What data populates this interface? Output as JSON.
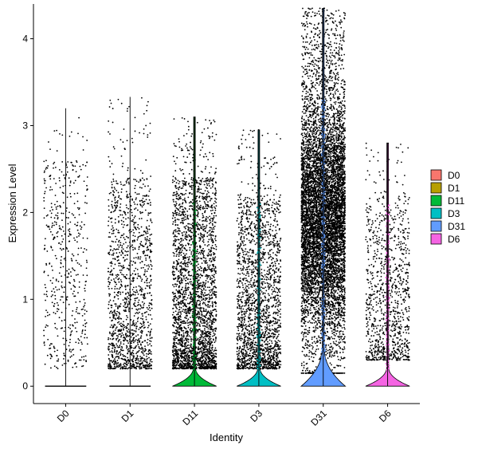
{
  "chart_data": {
    "type": "violin",
    "xlabel": "Identity",
    "ylabel": "Expression Level",
    "ylim": [
      -0.2,
      4.4
    ],
    "yticks": [
      0,
      1,
      2,
      3,
      4
    ],
    "grid": false,
    "legend_position": "right",
    "categories": [
      "D0",
      "D1",
      "D11",
      "D3",
      "D31",
      "D6"
    ],
    "legend": [
      {
        "label": "D0",
        "color": "#F8766D"
      },
      {
        "label": "D1",
        "color": "#B79F00"
      },
      {
        "label": "D11",
        "color": "#00BA38"
      },
      {
        "label": "D3",
        "color": "#00BFC4"
      },
      {
        "label": "D31",
        "color": "#619CFF"
      },
      {
        "label": "D6",
        "color": "#F564E3"
      }
    ],
    "series": [
      {
        "category": "D0",
        "max": 3.2,
        "points_above_zero": 500,
        "point_band": [
          0.2,
          2.6
        ]
      },
      {
        "category": "D1",
        "max": 3.33,
        "points_above_zero": 1400,
        "point_band": [
          0.2,
          2.4
        ]
      },
      {
        "category": "D11",
        "max": 3.1,
        "points_above_zero": 2800,
        "point_band": [
          0.2,
          2.4
        ]
      },
      {
        "category": "D3",
        "max": 2.95,
        "points_above_zero": 2000,
        "point_band": [
          0.2,
          2.2
        ]
      },
      {
        "category": "D31",
        "max": 4.35,
        "points_above_zero": 8000,
        "point_band": [
          0.3,
          3.4
        ]
      },
      {
        "category": "D6",
        "max": 2.8,
        "points_above_zero": 1000,
        "point_band": [
          0.3,
          2.2
        ]
      }
    ]
  }
}
